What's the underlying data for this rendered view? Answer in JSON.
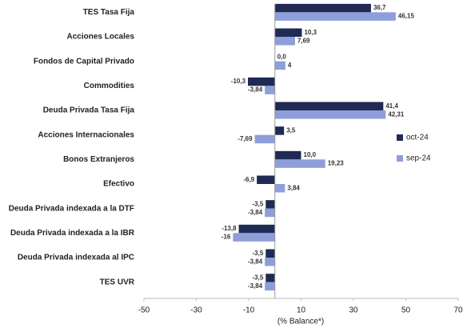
{
  "chart_data": {
    "type": "bar",
    "orientation": "horizontal",
    "categories": [
      "TES Tasa Fija",
      "Acciones Locales",
      "Fondos de Capital Privado",
      "Commodities",
      "Deuda Privada Tasa Fija",
      "Acciones Internacionales",
      "Bonos Extranjeros",
      "Efectivo",
      "Deuda Privada indexada a la DTF",
      "Deuda Privada indexada a la IBR",
      "Deuda Privada indexada al IPC",
      "TES UVR"
    ],
    "series": [
      {
        "name": "oct-24",
        "color": "#1f2a55",
        "values": [
          36.7,
          10.3,
          0.0,
          -10.3,
          41.4,
          3.5,
          10.0,
          -6.9,
          -3.5,
          -13.8,
          -3.5,
          -3.5
        ],
        "value_labels": [
          "36,7",
          "10,3",
          "0,0",
          "-10,3",
          "41,4",
          "3,5",
          "10,0",
          "-6,9",
          "-3,5",
          "-13,8",
          "-3,5",
          "-3,5"
        ]
      },
      {
        "name": "sep-24",
        "color": "#8e9ed8",
        "values": [
          46.15,
          7.69,
          4,
          -3.84,
          42.31,
          -7.69,
          19.23,
          3.84,
          -3.84,
          -16,
          -3.84,
          -3.84
        ],
        "value_labels": [
          "46,15",
          "7,69",
          "4",
          "-3,84",
          "42,31",
          "-7,69",
          "19,23",
          "3,84",
          "-3,84",
          "-16",
          "-3,84",
          "-3,84"
        ]
      }
    ],
    "xlim": [
      -50,
      70
    ],
    "xticks": [
      -50,
      -30,
      -10,
      10,
      30,
      50,
      70
    ],
    "x_label": "(% Balance*)",
    "legend": "right",
    "grid": false
  }
}
